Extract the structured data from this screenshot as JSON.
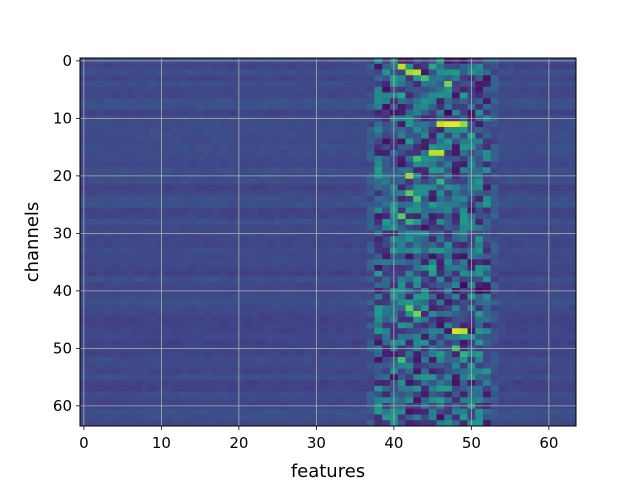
{
  "chart_data": {
    "type": "heatmap",
    "title": "",
    "xlabel": "features",
    "ylabel": "channels",
    "rows": 64,
    "cols": 64,
    "xlim": [
      -0.5,
      63.5
    ],
    "ylim": [
      63.5,
      -0.5
    ],
    "x_ticks": [
      0,
      10,
      20,
      30,
      40,
      50,
      60
    ],
    "y_ticks": [
      0,
      10,
      20,
      30,
      40,
      50,
      60
    ],
    "grid": true,
    "colormap": "viridis",
    "background_value": 0.22,
    "active_feature_range": [
      38,
      52
    ],
    "hotspots": [
      {
        "channel": 1,
        "feature": 41,
        "value": 0.9
      },
      {
        "channel": 1,
        "feature": 45,
        "value": 0.6
      },
      {
        "channel": 2,
        "feature": 42,
        "value": 0.85
      },
      {
        "channel": 2,
        "feature": 43,
        "value": 0.9
      },
      {
        "channel": 3,
        "feature": 44,
        "value": 0.7
      },
      {
        "channel": 4,
        "feature": 47,
        "value": 0.8
      },
      {
        "channel": 6,
        "feature": 41,
        "value": 0.6
      },
      {
        "channel": 11,
        "feature": 46,
        "value": 0.92
      },
      {
        "channel": 11,
        "feature": 47,
        "value": 0.98
      },
      {
        "channel": 11,
        "feature": 48,
        "value": 0.98
      },
      {
        "channel": 11,
        "feature": 49,
        "value": 0.85
      },
      {
        "channel": 13,
        "feature": 50,
        "value": 0.6
      },
      {
        "channel": 16,
        "feature": 45,
        "value": 0.9
      },
      {
        "channel": 16,
        "feature": 46,
        "value": 0.9
      },
      {
        "channel": 17,
        "feature": 43,
        "value": 0.7
      },
      {
        "channel": 20,
        "feature": 42,
        "value": 0.85
      },
      {
        "channel": 21,
        "feature": 46,
        "value": 0.65
      },
      {
        "channel": 23,
        "feature": 42,
        "value": 0.75
      },
      {
        "channel": 24,
        "feature": 43,
        "value": 0.7
      },
      {
        "channel": 27,
        "feature": 41,
        "value": 0.75
      },
      {
        "channel": 28,
        "feature": 42,
        "value": 0.65
      },
      {
        "channel": 36,
        "feature": 45,
        "value": 0.6
      },
      {
        "channel": 43,
        "feature": 42,
        "value": 0.75
      },
      {
        "channel": 44,
        "feature": 43,
        "value": 0.8
      },
      {
        "channel": 47,
        "feature": 48,
        "value": 0.95
      },
      {
        "channel": 47,
        "feature": 49,
        "value": 0.9
      },
      {
        "channel": 50,
        "feature": 48,
        "value": 0.7
      },
      {
        "channel": 51,
        "feature": 49,
        "value": 0.65
      },
      {
        "channel": 52,
        "feature": 41,
        "value": 0.7
      }
    ],
    "coldspots": [
      {
        "channel": 9,
        "feature": 47,
        "value": 0.02
      },
      {
        "channel": 39,
        "feature": 49,
        "value": 0.03
      },
      {
        "channel": 40,
        "feature": 51,
        "value": 0.02
      },
      {
        "channel": 46,
        "feature": 46,
        "value": 0.05
      },
      {
        "channel": 62,
        "feature": 46,
        "value": 0.05
      }
    ]
  }
}
